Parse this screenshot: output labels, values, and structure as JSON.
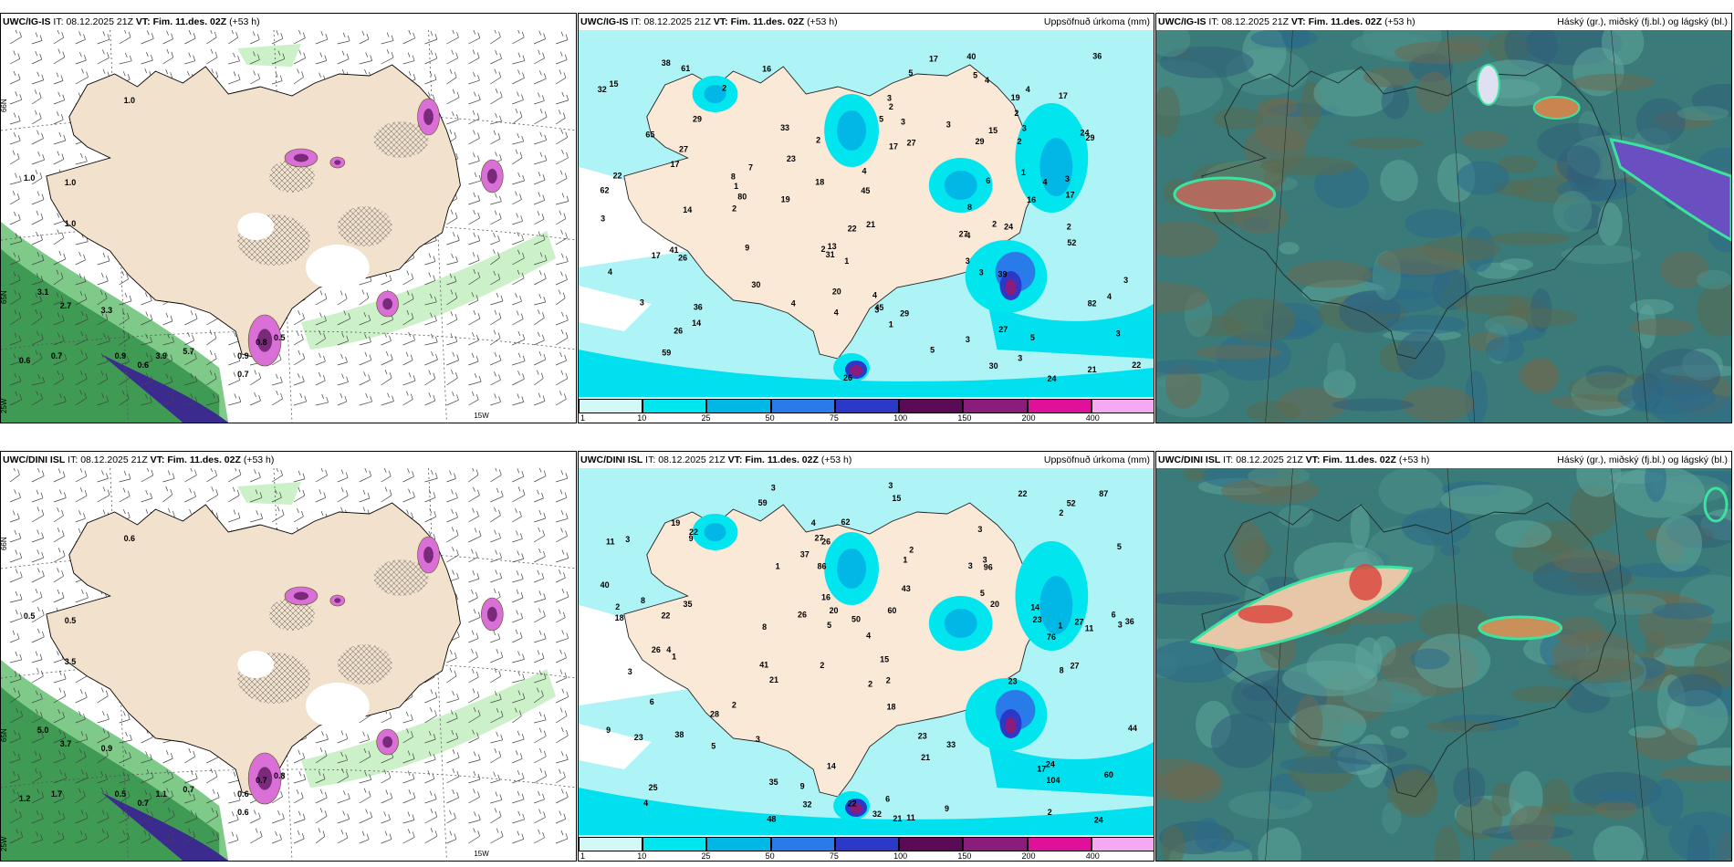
{
  "rows": [
    {
      "model": "UWC/IG-IS",
      "it_label": "IT:",
      "it_value": "08.12.2025 21Z",
      "vt_label": "VT:",
      "vt_value": "Fim. 11.des. 02Z",
      "lead": "(+53 h)",
      "left_labels": [
        "1.0",
        "1.0",
        "1.0",
        "3.1",
        "2.7",
        "3.3",
        "0.6",
        "0.7",
        "0.9",
        "0.6",
        "3.9",
        "5.7",
        "0.9",
        "0.7",
        "0.8",
        "0.5",
        "1.0"
      ],
      "left_grid": [
        "66N",
        "65N",
        "25W",
        "15W"
      ],
      "mid_labels": [
        "3",
        "3",
        "4",
        "4",
        "3",
        "3",
        "3",
        "4",
        "3",
        "3",
        "2",
        "4",
        "4",
        "39",
        "30",
        "21",
        "17",
        "17",
        "4",
        "2",
        "1",
        "3",
        "6",
        "5",
        "17",
        "26",
        "27",
        "15",
        "22",
        "26",
        "29",
        "17",
        "22",
        "27",
        "19",
        "59",
        "27",
        "21",
        "24",
        "30",
        "13",
        "9",
        "3",
        "26",
        "62",
        "33",
        "36",
        "7",
        "22",
        "61",
        "20",
        "8",
        "45",
        "5",
        "15",
        "80",
        "4",
        "38",
        "16",
        "45",
        "2",
        "4",
        "5",
        "5",
        "3",
        "3",
        "8",
        "4",
        "4",
        "2",
        "16",
        "14",
        "41",
        "40",
        "23",
        "14",
        "24",
        "31",
        "52",
        "65",
        "3",
        "3",
        "2",
        "1",
        "5",
        "2",
        "1",
        "2",
        "1",
        "36",
        "82",
        "2",
        "3",
        "24",
        "2",
        "32",
        "17",
        "18",
        "29",
        "29",
        "29",
        "27",
        "17",
        "19"
      ],
      "mid_right": "Uppsöfnuð úrkoma (mm)",
      "right_right": "Háský (gr.), miðský (fj.bl.) og lágský (bl.)"
    },
    {
      "model": "UWC/DINI ISL",
      "it_label": "IT:",
      "it_value": "08.12.2025 21Z",
      "vt_label": "VT:",
      "vt_value": "Fim. 11.des. 02Z",
      "lead": "(+53 h)",
      "left_labels": [
        "0.5",
        "0.5",
        "3.5",
        "5.0",
        "3.7",
        "0.9",
        "1.2",
        "1.7",
        "0.5",
        "0.7",
        "1.1",
        "0.7",
        "0.6",
        "0.6",
        "0.7",
        "0.8",
        "0.6"
      ],
      "left_grid": [
        "66N",
        "65N",
        "25W",
        "15W"
      ],
      "mid_labels": [
        "3",
        "3",
        "3",
        "2",
        "2",
        "4",
        "3",
        "3",
        "3",
        "1",
        "4",
        "4",
        "59",
        "41",
        "21",
        "11",
        "14",
        "22",
        "20",
        "28",
        "22",
        "26",
        "36",
        "27",
        "9",
        "8",
        "5",
        "23",
        "24",
        "23",
        "17",
        "2",
        "38",
        "26",
        "33",
        "44",
        "14",
        "9",
        "87",
        "62",
        "25",
        "48",
        "9",
        "19",
        "22",
        "96",
        "104",
        "3",
        "40",
        "15",
        "27",
        "76",
        "60",
        "2",
        "15",
        "5",
        "16",
        "50",
        "52",
        "86",
        "60",
        "8",
        "22",
        "3",
        "2",
        "2",
        "1",
        "1",
        "1",
        "5",
        "6",
        "4",
        "6",
        "5",
        "43",
        "35",
        "35",
        "9",
        "11",
        "2",
        "3",
        "6",
        "2",
        "11",
        "37",
        "26",
        "24",
        "23",
        "21",
        "21",
        "18",
        "27",
        "32",
        "32",
        "20",
        "23",
        "18",
        "8"
      ],
      "mid_right": "Uppsöfnuð úrkoma (mm)",
      "right_right": "Háský (gr.), miðský (fj.bl.) og lágský (bl.)"
    }
  ],
  "colorbar": {
    "ticks": [
      "1",
      "10",
      "25",
      "50",
      "75",
      "100",
      "150",
      "200",
      "400"
    ],
    "colors": [
      "#d4f7f7",
      "#00e5ee",
      "#00b7e6",
      "#2a7bea",
      "#2c39c8",
      "#5b0a55",
      "#8a1c7c",
      "#e0109a",
      "#f4a9f0"
    ]
  }
}
